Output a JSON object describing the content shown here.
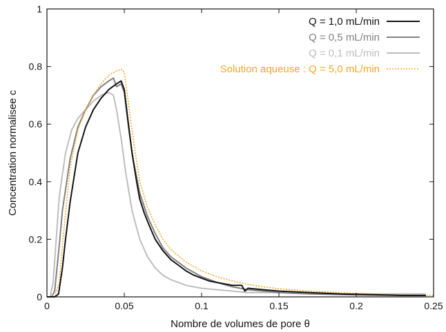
{
  "chart_data": {
    "type": "line",
    "title": "",
    "xlabel": "Nombre de volumes de pore θ",
    "ylabel": "Concentration normalisee c",
    "xlim": [
      0,
      0.25
    ],
    "ylim": [
      0,
      1
    ],
    "xticks": [
      0,
      0.05,
      0.1,
      0.15,
      0.2,
      0.25
    ],
    "xtick_labels": [
      "0",
      "0.05",
      "0.1",
      "0.15",
      "0.2",
      "0.25"
    ],
    "yticks": [
      0,
      0.2,
      0.4,
      0.6,
      0.8,
      1
    ],
    "ytick_labels": [
      "0",
      "0.2",
      "0.4",
      "0.6",
      "0.8",
      "1"
    ],
    "grid": false,
    "legend_position": "top-right",
    "series": [
      {
        "name": "Q = 1,0 mL/min",
        "color": "#111111",
        "style": "solid",
        "x": [
          0,
          0.005,
          0.0075,
          0.01,
          0.012,
          0.015,
          0.02,
          0.025,
          0.03,
          0.035,
          0.04,
          0.045,
          0.048,
          0.05,
          0.052,
          0.055,
          0.058,
          0.06,
          0.063,
          0.066,
          0.07,
          0.075,
          0.08,
          0.085,
          0.09,
          0.095,
          0.1,
          0.105,
          0.11,
          0.115,
          0.12,
          0.126,
          0.128,
          0.13,
          0.14,
          0.15,
          0.17,
          0.19,
          0.21,
          0.23,
          0.245
        ],
        "y": [
          0,
          0,
          0.01,
          0.1,
          0.2,
          0.33,
          0.5,
          0.59,
          0.65,
          0.69,
          0.72,
          0.74,
          0.75,
          0.72,
          0.63,
          0.5,
          0.4,
          0.34,
          0.29,
          0.25,
          0.2,
          0.16,
          0.13,
          0.11,
          0.09,
          0.075,
          0.065,
          0.055,
          0.05,
          0.045,
          0.04,
          0.04,
          0.02,
          0.03,
          0.025,
          0.02,
          0.015,
          0.01,
          0.008,
          0.005,
          0.005
        ]
      },
      {
        "name": "Q = 0,5 mL/min",
        "color": "#808080",
        "style": "solid",
        "x": [
          0,
          0.003,
          0.005,
          0.008,
          0.01,
          0.015,
          0.02,
          0.025,
          0.03,
          0.035,
          0.04,
          0.043,
          0.045,
          0.048,
          0.05,
          0.053,
          0.056,
          0.06,
          0.065,
          0.07,
          0.075,
          0.08,
          0.09,
          0.1,
          0.11,
          0.12,
          0.13,
          0.14,
          0.15,
          0.17,
          0.19,
          0.21,
          0.23,
          0.245
        ],
        "y": [
          0,
          0,
          0.02,
          0.18,
          0.3,
          0.48,
          0.59,
          0.65,
          0.7,
          0.73,
          0.75,
          0.76,
          0.73,
          0.74,
          0.71,
          0.58,
          0.47,
          0.36,
          0.28,
          0.22,
          0.17,
          0.14,
          0.1,
          0.07,
          0.05,
          0.035,
          0.025,
          0.02,
          0.015,
          0.01,
          0.008,
          0.006,
          0.005,
          0.005
        ]
      },
      {
        "name": "Q = 0,1 mL/min",
        "color": "#bdbdbd",
        "style": "solid",
        "x": [
          0,
          0.002,
          0.004,
          0.006,
          0.008,
          0.012,
          0.016,
          0.02,
          0.025,
          0.03,
          0.035,
          0.04,
          0.043,
          0.045,
          0.048,
          0.051,
          0.055,
          0.06,
          0.065,
          0.07,
          0.075,
          0.08,
          0.085,
          0.09,
          0.1,
          0.11,
          0.12,
          0.13,
          0.15,
          0.17,
          0.19,
          0.21,
          0.23,
          0.245
        ],
        "y": [
          0,
          0,
          0.05,
          0.2,
          0.35,
          0.5,
          0.58,
          0.62,
          0.65,
          0.68,
          0.7,
          0.71,
          0.7,
          0.65,
          0.55,
          0.43,
          0.3,
          0.2,
          0.14,
          0.1,
          0.075,
          0.06,
          0.05,
          0.04,
          0.03,
          0.025,
          0.02,
          0.015,
          0.015,
          0.01,
          0.01,
          0.01,
          0.01,
          0.01
        ]
      },
      {
        "name": "Solution aqueuse : Q = 5,0 mL/min",
        "color": "#f5a623",
        "style": "dotted",
        "x": [
          0,
          0.005,
          0.008,
          0.01,
          0.015,
          0.02,
          0.025,
          0.03,
          0.035,
          0.04,
          0.045,
          0.048,
          0.05,
          0.052,
          0.055,
          0.058,
          0.06,
          0.065,
          0.07,
          0.075,
          0.08,
          0.09,
          0.1,
          0.11,
          0.12,
          0.13,
          0.14,
          0.15,
          0.17,
          0.19,
          0.21,
          0.23,
          0.25
        ],
        "y": [
          0,
          0,
          0.05,
          0.18,
          0.45,
          0.58,
          0.65,
          0.7,
          0.74,
          0.77,
          0.785,
          0.79,
          0.78,
          0.7,
          0.58,
          0.47,
          0.4,
          0.31,
          0.25,
          0.2,
          0.165,
          0.12,
          0.09,
          0.07,
          0.055,
          0.043,
          0.035,
          0.028,
          0.02,
          0.014,
          0.01,
          0.007,
          0.005
        ]
      }
    ]
  }
}
